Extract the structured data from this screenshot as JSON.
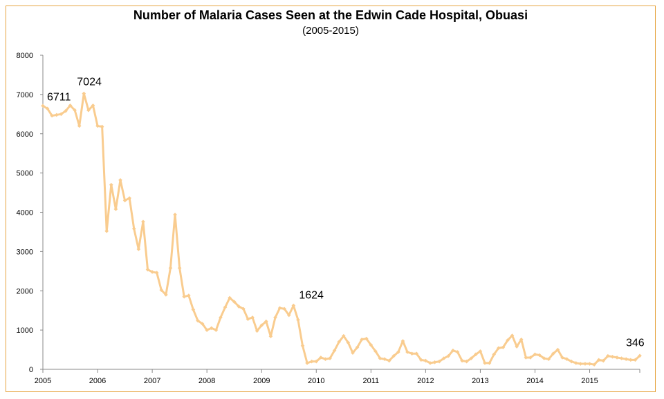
{
  "chart_data": {
    "type": "line",
    "title": "Number of Malaria Cases Seen at the Edwin Cade Hospital, Obuasi",
    "subtitle": "(2005-2015)",
    "xlabel": "",
    "ylabel": "",
    "ylim": [
      0,
      8000
    ],
    "y_ticks": [
      "0",
      "1000",
      "2000",
      "3000",
      "4000",
      "5000",
      "6000",
      "7000",
      "8000"
    ],
    "x_tick_labels": [
      "2005",
      "2006",
      "2007",
      "2008",
      "2009",
      "2010",
      "2011",
      "2012",
      "2013",
      "2014",
      "2015"
    ],
    "grid": false,
    "legend": "none",
    "colors": {
      "line": "#f9cc8f",
      "frame": "#e6a23c",
      "axis": "#888888"
    },
    "series": [
      {
        "values": [
          6711,
          6640,
          6460,
          6480,
          6500,
          6580,
          6720,
          6600,
          6200,
          7024,
          6600,
          6720,
          6200,
          6180,
          3520,
          4700,
          4080,
          4820,
          4300,
          4360,
          3580,
          3060,
          3760,
          2540,
          2480,
          2460,
          2020,
          1900,
          2580,
          3940,
          2580,
          1850,
          1880,
          1520,
          1240,
          1160,
          1000,
          1050,
          1000,
          1320,
          1580,
          1820,
          1720,
          1600,
          1540,
          1280,
          1320,
          980,
          1120,
          1220,
          840,
          1320,
          1560,
          1540,
          1380,
          1624,
          1260,
          600,
          160,
          200,
          200,
          300,
          260,
          280,
          480,
          700,
          850,
          680,
          420,
          560,
          760,
          780,
          620,
          460,
          280,
          260,
          220,
          340,
          440,
          720,
          440,
          400,
          400,
          240,
          220,
          160,
          180,
          200,
          280,
          340,
          480,
          440,
          220,
          200,
          280,
          380,
          460,
          160,
          160,
          380,
          540,
          560,
          740,
          860,
          580,
          760,
          300,
          300,
          380,
          360,
          280,
          260,
          400,
          500,
          300,
          260,
          200,
          160,
          140,
          140,
          140,
          120,
          240,
          220,
          340,
          320,
          300,
          280,
          260,
          240,
          240,
          346
        ]
      }
    ],
    "data_labels": [
      {
        "index": 0,
        "text": "6711"
      },
      {
        "index": 9,
        "text": "7024"
      },
      {
        "index": 55,
        "text": "1624"
      },
      {
        "index": 131,
        "text": "346"
      }
    ]
  }
}
